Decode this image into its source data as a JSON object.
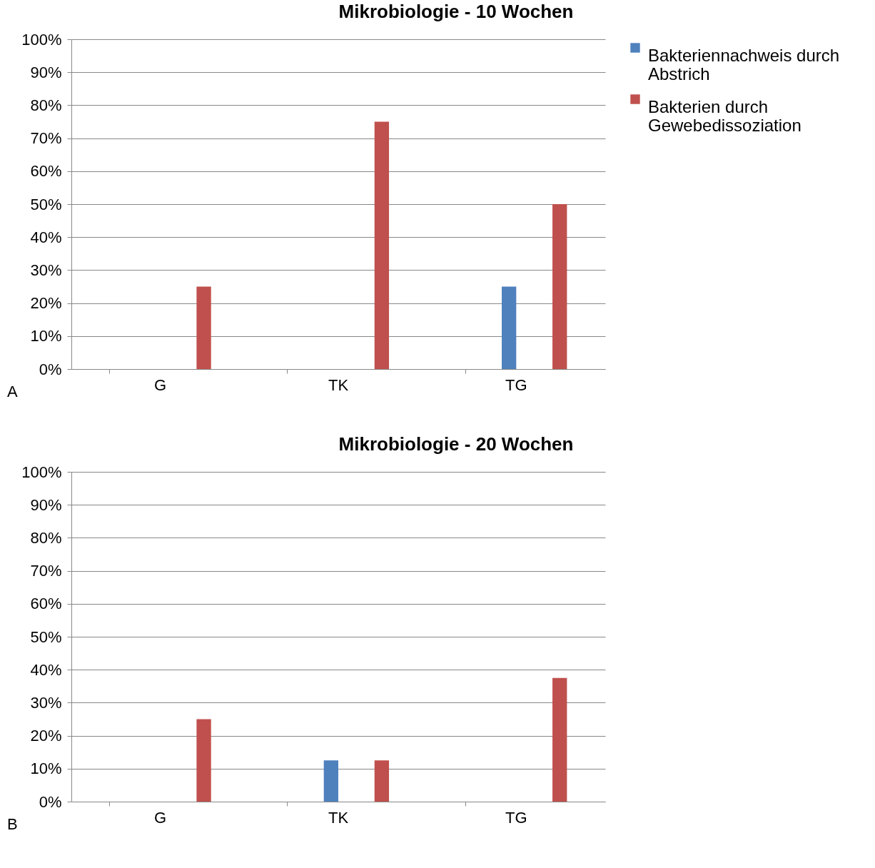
{
  "chart_data": [
    {
      "type": "bar",
      "title": "Mikrobiologie - 10 Wochen",
      "categories": [
        "G",
        "TK",
        "TG"
      ],
      "series": [
        {
          "name": "Bakteriennachweis durch Abstrich",
          "color": "#4f81bd",
          "values": [
            0,
            0,
            25
          ]
        },
        {
          "name": "Bakterien durch Gewebedissoziation",
          "color": "#c0504d",
          "values": [
            25,
            75,
            50
          ]
        }
      ],
      "ylim": [
        0,
        100
      ],
      "yticks": [
        {
          "value": 0,
          "label": "0%"
        },
        {
          "value": 10,
          "label": "10%"
        },
        {
          "value": 20,
          "label": "20%"
        },
        {
          "value": 30,
          "label": "30%"
        },
        {
          "value": 40,
          "label": "40%"
        },
        {
          "value": 50,
          "label": "50%"
        },
        {
          "value": 60,
          "label": "60%"
        },
        {
          "value": 70,
          "label": "70%"
        },
        {
          "value": 80,
          "label": "80%"
        },
        {
          "value": 90,
          "label": "90%"
        },
        {
          "value": 100,
          "label": "100%"
        }
      ],
      "grid": "y",
      "legend": "right",
      "annotations": [
        "A"
      ]
    },
    {
      "type": "bar",
      "title": "Mikrobiologie - 20 Wochen",
      "categories": [
        "G",
        "TK",
        "TG"
      ],
      "series": [
        {
          "name": "Bakteriennachweis durch Abstrich",
          "color": "#4f81bd",
          "values": [
            0,
            12.5,
            0
          ]
        },
        {
          "name": "Bakterien durch Gewebedissoziation",
          "color": "#c0504d",
          "values": [
            25,
            12.5,
            37.5
          ]
        }
      ],
      "ylim": [
        0,
        100
      ],
      "yticks": [
        {
          "value": 0,
          "label": "0%"
        },
        {
          "value": 10,
          "label": "10%"
        },
        {
          "value": 20,
          "label": "20%"
        },
        {
          "value": 30,
          "label": "30%"
        },
        {
          "value": 40,
          "label": "40%"
        },
        {
          "value": 50,
          "label": "50%"
        },
        {
          "value": 60,
          "label": "60%"
        },
        {
          "value": 70,
          "label": "70%"
        },
        {
          "value": 80,
          "label": "80%"
        },
        {
          "value": 90,
          "label": "90%"
        },
        {
          "value": 100,
          "label": "100%"
        }
      ],
      "grid": "y",
      "legend": "right",
      "annotations": [
        "B"
      ]
    }
  ]
}
